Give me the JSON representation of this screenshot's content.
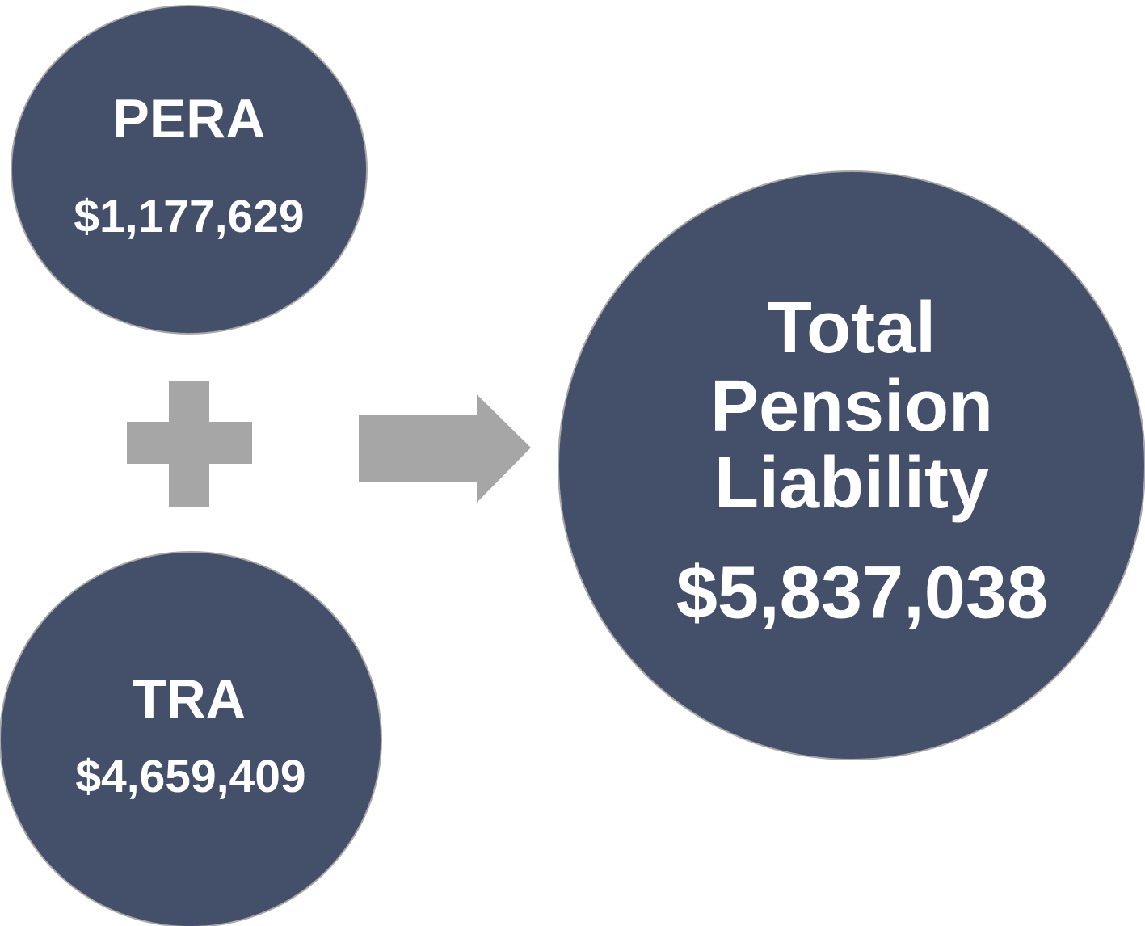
{
  "nodes": [
    {
      "label_lines": [
        "PERA"
      ],
      "value": "$1,177,629"
    },
    {
      "label_lines": [
        "TRA"
      ],
      "value": "$4,659,409"
    },
    {
      "label_lines": [
        "Total",
        "Pension",
        "Liability"
      ],
      "value": "$5,837,038"
    }
  ]
}
